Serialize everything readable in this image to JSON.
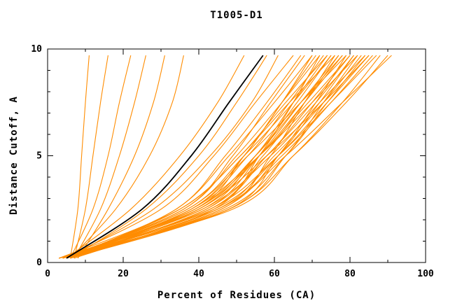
{
  "title": "T1005-D1",
  "chart_data": {
    "type": "line",
    "title": "T1005-D1",
    "xlabel": "Percent of Residues (CA)",
    "ylabel": "Distance Cutoff, A",
    "xlim": [
      0,
      100
    ],
    "ylim": [
      0,
      10
    ],
    "xticks": [
      0,
      20,
      40,
      60,
      80,
      100
    ],
    "xticks_minor": [
      10,
      30,
      50,
      70,
      90
    ],
    "yticks": [
      0,
      5,
      10
    ],
    "yticks_minor": [
      1,
      2,
      3,
      4,
      6,
      7,
      8,
      9
    ],
    "grid": false,
    "legend": "none",
    "colors": {
      "model": "#ff8c00",
      "highlight": "#000000",
      "axis": "#000000",
      "background": "#ffffff"
    },
    "y_samples": [
      0.2,
      2.5,
      5,
      7.5,
      9.7
    ],
    "highlight_curve": {
      "name": "black-curve",
      "x": [
        5,
        25,
        38,
        48,
        57
      ]
    },
    "orange_curves": [
      [
        6,
        8,
        9,
        10,
        11
      ],
      [
        7,
        10,
        12,
        14,
        16
      ],
      [
        6,
        12,
        16,
        19,
        22
      ],
      [
        7,
        14,
        19,
        23,
        26
      ],
      [
        8,
        16,
        23,
        28,
        31
      ],
      [
        6,
        18,
        27,
        33,
        36
      ],
      [
        5,
        22,
        35,
        45,
        52
      ],
      [
        6,
        26,
        40,
        50,
        58
      ],
      [
        5,
        28,
        43,
        54,
        61
      ],
      [
        4,
        30,
        44,
        55,
        65
      ],
      [
        5,
        34,
        47,
        58,
        67
      ],
      [
        4,
        36,
        49,
        59,
        68
      ],
      [
        6,
        34,
        48,
        60,
        70
      ],
      [
        3,
        39,
        52,
        62,
        70
      ],
      [
        5,
        38,
        52,
        62,
        71
      ],
      [
        4,
        36,
        50,
        62,
        72
      ],
      [
        7,
        44,
        56,
        65,
        72
      ],
      [
        4,
        38,
        53,
        64,
        73
      ],
      [
        5,
        35,
        51,
        63,
        74
      ],
      [
        3,
        41,
        55,
        65,
        74
      ],
      [
        6,
        40,
        55,
        66,
        75
      ],
      [
        4,
        37,
        52,
        65,
        75
      ],
      [
        5,
        46,
        59,
        68,
        76
      ],
      [
        3,
        35,
        51,
        64,
        76
      ],
      [
        6,
        42,
        56,
        67,
        77
      ],
      [
        4,
        43,
        57,
        68,
        77
      ],
      [
        5,
        39,
        55,
        67,
        78
      ],
      [
        3,
        40,
        56,
        68,
        78
      ],
      [
        6,
        48,
        61,
        71,
        79
      ],
      [
        4,
        37,
        53,
        67,
        79
      ],
      [
        5,
        42,
        58,
        70,
        80
      ],
      [
        3,
        39,
        56,
        69,
        80
      ],
      [
        6,
        46,
        61,
        72,
        81
      ],
      [
        4,
        43,
        58,
        71,
        81
      ],
      [
        5,
        38,
        56,
        70,
        82
      ],
      [
        3,
        48,
        63,
        73,
        82
      ],
      [
        6,
        45,
        60,
        73,
        83
      ],
      [
        4,
        41,
        59,
        72,
        84
      ],
      [
        5,
        47,
        63,
        74,
        84
      ],
      [
        3,
        44,
        61,
        74,
        85
      ],
      [
        6,
        40,
        58,
        73,
        85
      ],
      [
        4,
        45,
        62,
        75,
        86
      ],
      [
        5,
        43,
        61,
        75,
        87
      ],
      [
        3,
        49,
        65,
        78,
        88
      ],
      [
        6,
        48,
        65,
        79,
        90
      ],
      [
        4,
        45,
        63,
        78,
        91
      ]
    ]
  }
}
